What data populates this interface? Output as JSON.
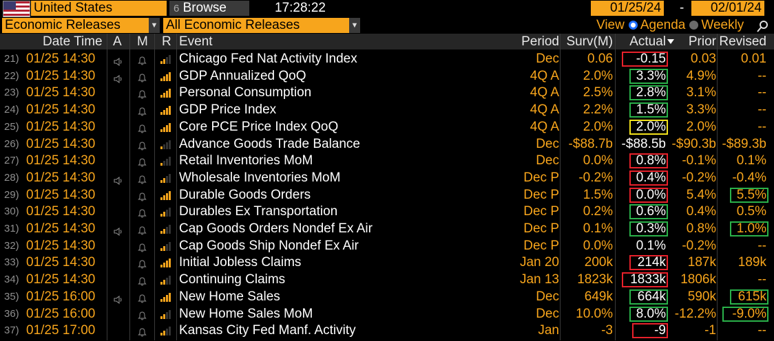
{
  "toolbar": {
    "country": "United States",
    "browse_label": "Browse",
    "browse_icon": "6",
    "time": "17:28:22",
    "date_from": "01/25/24",
    "date_sep": "-",
    "date_to": "02/01/24",
    "category": "Economic Releases",
    "filter": "All Economic Releases",
    "view_label": "View",
    "agenda_label": "Agenda",
    "weekly_label": "Weekly"
  },
  "columns": {
    "datetime": "Date Time",
    "a": "A",
    "m": "M",
    "r": "R",
    "event": "Event",
    "period": "Period",
    "surv": "Surv(M)",
    "actual": "Actual",
    "prior": "Prior",
    "revised": "Revised"
  },
  "colors": {
    "red": "#e8212b",
    "green": "#2ab24a",
    "yellow": "#f4e41c",
    "orange": "#f7a51c"
  },
  "rows": [
    {
      "num": "21)",
      "dt": "01/25 14:30",
      "a": true,
      "r": 2,
      "event": "Chicago Fed Nat Activity Index",
      "period": "Dec",
      "surv": "0.06",
      "actual": "-0.15",
      "prior": "0.03",
      "revised": "0.01",
      "abox": "red",
      "rbox": ""
    },
    {
      "num": "22)",
      "dt": "01/25 14:30",
      "a": true,
      "r": 3,
      "event": "GDP Annualized QoQ",
      "period": "4Q A",
      "surv": "2.0%",
      "actual": "3.3%",
      "prior": "4.9%",
      "revised": "--",
      "abox": "green",
      "rbox": ""
    },
    {
      "num": "23)",
      "dt": "01/25 14:30",
      "a": false,
      "r": 3,
      "event": "Personal Consumption",
      "period": "4Q A",
      "surv": "2.5%",
      "actual": "2.8%",
      "prior": "3.1%",
      "revised": "--",
      "abox": "green",
      "rbox": ""
    },
    {
      "num": "24)",
      "dt": "01/25 14:30",
      "a": false,
      "r": 3,
      "event": "GDP Price Index",
      "period": "4Q A",
      "surv": "2.2%",
      "actual": "1.5%",
      "prior": "3.3%",
      "revised": "--",
      "abox": "green",
      "rbox": ""
    },
    {
      "num": "25)",
      "dt": "01/25 14:30",
      "a": false,
      "r": 3,
      "event": "Core PCE Price Index QoQ",
      "period": "4Q A",
      "surv": "2.0%",
      "actual": "2.0%",
      "prior": "2.0%",
      "revised": "--",
      "abox": "yellow",
      "rbox": ""
    },
    {
      "num": "26)",
      "dt": "01/25 14:30",
      "a": false,
      "r": 1,
      "event": "Advance Goods Trade Balance",
      "period": "Dec",
      "surv": "-$88.7b",
      "actual": "-$88.5b",
      "prior": "-$90.3b",
      "revised": "-$89.3b",
      "abox": "",
      "rbox": ""
    },
    {
      "num": "27)",
      "dt": "01/25 14:30",
      "a": false,
      "r": 1,
      "event": "Retail Inventories MoM",
      "period": "Dec",
      "surv": "0.0%",
      "actual": "0.8%",
      "prior": "-0.1%",
      "revised": "0.1%",
      "abox": "red",
      "rbox": ""
    },
    {
      "num": "28)",
      "dt": "01/25 14:30",
      "a": true,
      "r": 2,
      "event": "Wholesale Inventories MoM",
      "period": "Dec P",
      "surv": "-0.2%",
      "actual": "0.4%",
      "prior": "-0.2%",
      "revised": "-0.4%",
      "abox": "red",
      "rbox": ""
    },
    {
      "num": "29)",
      "dt": "01/25 14:30",
      "a": false,
      "r": 3,
      "event": "Durable Goods Orders",
      "period": "Dec P",
      "surv": "1.5%",
      "actual": "0.0%",
      "prior": "5.4%",
      "revised": "5.5%",
      "abox": "red",
      "rbox": "green"
    },
    {
      "num": "30)",
      "dt": "01/25 14:30",
      "a": false,
      "r": 2,
      "event": "Durables Ex Transportation",
      "period": "Dec P",
      "surv": "0.2%",
      "actual": "0.6%",
      "prior": "0.4%",
      "revised": "0.5%",
      "abox": "green",
      "rbox": ""
    },
    {
      "num": "31)",
      "dt": "01/25 14:30",
      "a": true,
      "r": 2,
      "event": "Cap Goods Orders Nondef Ex Air",
      "period": "Dec P",
      "surv": "0.1%",
      "actual": "0.3%",
      "prior": "0.8%",
      "revised": "1.0%",
      "abox": "green",
      "rbox": "green"
    },
    {
      "num": "32)",
      "dt": "01/25 14:30",
      "a": false,
      "r": 2,
      "event": "Cap Goods Ship Nondef Ex Air",
      "period": "Dec P",
      "surv": "0.0%",
      "actual": "0.1%",
      "prior": "-0.2%",
      "revised": "--",
      "abox": "",
      "rbox": ""
    },
    {
      "num": "33)",
      "dt": "01/25 14:30",
      "a": false,
      "r": 3,
      "event": "Initial Jobless Claims",
      "period": "Jan 20",
      "surv": "200k",
      "actual": "214k",
      "prior": "187k",
      "revised": "189k",
      "abox": "red",
      "rbox": ""
    },
    {
      "num": "34)",
      "dt": "01/25 14:30",
      "a": false,
      "r": 2,
      "event": "Continuing Claims",
      "period": "Jan 13",
      "surv": "1823k",
      "actual": "1833k",
      "prior": "1806k",
      "revised": "--",
      "abox": "red",
      "rbox": ""
    },
    {
      "num": "35)",
      "dt": "01/25 16:00",
      "a": true,
      "r": 3,
      "event": "New Home Sales",
      "period": "Dec",
      "surv": "649k",
      "actual": "664k",
      "prior": "590k",
      "revised": "615k",
      "abox": "green",
      "rbox": "green"
    },
    {
      "num": "36)",
      "dt": "01/25 16:00",
      "a": false,
      "r": 2,
      "event": "New Home Sales MoM",
      "period": "Dec",
      "surv": "10.0%",
      "actual": "8.0%",
      "prior": "-12.2%",
      "revised": "-9.0%",
      "abox": "green",
      "rbox": "green"
    },
    {
      "num": "37)",
      "dt": "01/25 17:00",
      "a": false,
      "r": 2,
      "event": "Kansas City Fed Manf. Activity",
      "period": "Jan",
      "surv": "-3",
      "actual": "-9",
      "prior": "-1",
      "revised": "--",
      "abox": "red",
      "rbox": ""
    }
  ]
}
